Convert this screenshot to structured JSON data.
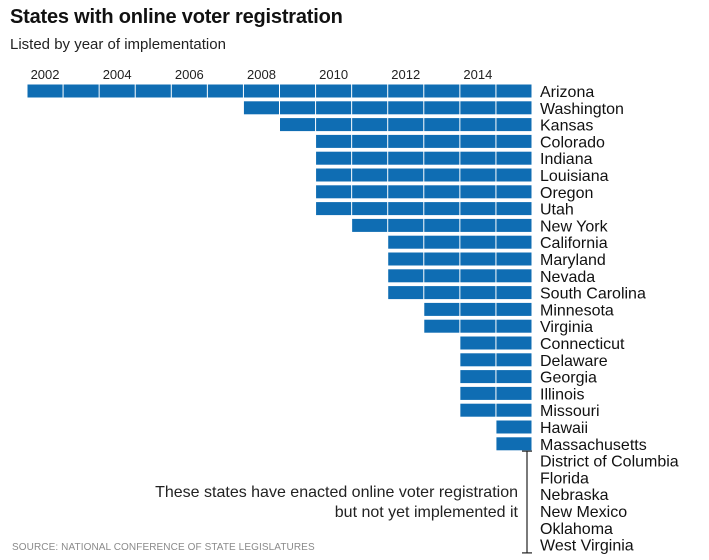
{
  "chart_data": {
    "type": "bar",
    "title": "States with online voter registration",
    "subtitle": "Listed by year of implementation",
    "x_axis_ticks": [
      "2002",
      "2004",
      "2006",
      "2008",
      "2010",
      "2012",
      "2014"
    ],
    "xlim": [
      2002,
      2016
    ],
    "bar_end_year": 2016,
    "bar_color": "#0f6db3",
    "implemented": [
      {
        "state": "Arizona",
        "year": 2002
      },
      {
        "state": "Washington",
        "year": 2008
      },
      {
        "state": "Kansas",
        "year": 2009
      },
      {
        "state": "Colorado",
        "year": 2010
      },
      {
        "state": "Indiana",
        "year": 2010
      },
      {
        "state": "Louisiana",
        "year": 2010
      },
      {
        "state": "Oregon",
        "year": 2010
      },
      {
        "state": "Utah",
        "year": 2010
      },
      {
        "state": "New York",
        "year": 2011
      },
      {
        "state": "California",
        "year": 2012
      },
      {
        "state": "Maryland",
        "year": 2012
      },
      {
        "state": "Nevada",
        "year": 2012
      },
      {
        "state": "South Carolina",
        "year": 2012
      },
      {
        "state": "Minnesota",
        "year": 2013
      },
      {
        "state": "Virginia",
        "year": 2013
      },
      {
        "state": "Connecticut",
        "year": 2014
      },
      {
        "state": "Delaware",
        "year": 2014
      },
      {
        "state": "Georgia",
        "year": 2014
      },
      {
        "state": "Illinois",
        "year": 2014
      },
      {
        "state": "Missouri",
        "year": 2014
      },
      {
        "state": "Hawaii",
        "year": 2015
      },
      {
        "state": "Massachusetts",
        "year": 2015
      }
    ],
    "enacted_not_implemented": [
      "District of Columbia",
      "Florida",
      "Nebraska",
      "New Mexico",
      "Oklahoma",
      "West Virginia"
    ],
    "annotation": "These states have enacted online voter registration but not yet implemented it",
    "source": "SOURCE: NATIONAL CONFERENCE OF STATE LEGISLATURES"
  }
}
